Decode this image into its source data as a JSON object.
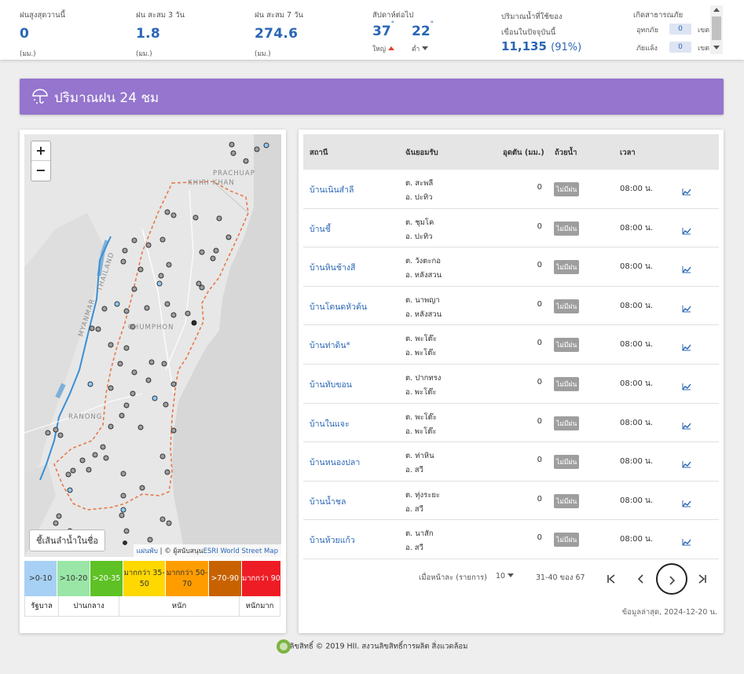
{
  "stats": [
    {
      "label": "ฝนสูงสุดวานนี้",
      "value": "0",
      "unit": "(มม.)"
    },
    {
      "label": "ฝน สะสม 3 วัน",
      "value": "1.8",
      "unit": "(มม.)"
    },
    {
      "label": "ฝน สะสม 7 วัน",
      "value": "274.6",
      "unit": "(มม.)"
    }
  ],
  "temperature": {
    "label": "สัปดาห์ต่อไป",
    "high": "37",
    "high_label": "ใหญ่",
    "low": "22",
    "low_label": "ต่ำ",
    "degree": "°"
  },
  "dam": {
    "label1": "ปริมาณน้ำที่ใช้ของ",
    "label2": "เขื่อนในปัจจุบันนี้",
    "value": "11,135",
    "percent": "(91%)"
  },
  "disaster": {
    "label": "เกิดสาธารณภัย",
    "flood_label": "อุทกภัย",
    "flood_count": "0",
    "drought_label": "ภัยแล้ง",
    "drought_count": "0",
    "unit": "เขต"
  },
  "banner": {
    "title": "ปริมาณฝน 24 ชม",
    "icon": "umbrella-rain-icon"
  },
  "map": {
    "zoom_in": "+",
    "zoom_out": "−",
    "labels": [
      "PRACHUAP",
      "KHIRI KHAN",
      "THAILAND",
      "MYANMAR",
      "CHUMPHON",
      "RANONG"
    ],
    "river_button": "ชี้เส้นลำน้ำในชื่อ",
    "attr_pre": "แผ่นพับ",
    "attr_mid": " | © ผู้สนับสนุน",
    "attr_link": "ESRI World Street Map"
  },
  "legend": {
    "cells": [
      {
        "label": ">0-10",
        "color": "#a7d0f5",
        "text": "#333"
      },
      {
        "label": ">10-20",
        "color": "#99e6a6",
        "text": "#333"
      },
      {
        "label": ">20-35",
        "color": "#5ec125",
        "text": "#fff"
      },
      {
        "label": "มากกว่า 35-50",
        "color": "#ffd800",
        "text": "#333"
      },
      {
        "label": "มากกว่า 50-70",
        "color": "#ff9d00",
        "text": "#333"
      },
      {
        "label": ">70-90",
        "color": "#c86200",
        "text": "#fff"
      },
      {
        "label": "มากกว่า 90",
        "color": "#ee1c25",
        "text": "#fff"
      }
    ],
    "categories": [
      "รัฐบาล",
      "ปานกลาง",
      "หนัก",
      "หนักมาก"
    ]
  },
  "table": {
    "headers": {
      "station": "สถานี",
      "location": "ฉันยอมรับ",
      "rain": "อุดตัน (มม.)",
      "pit": "ถ้วยน้ำ",
      "time": "เวลา"
    },
    "rows": [
      {
        "station": "บ้านเนินสำลี",
        "tambon": "ต. สะพลี",
        "amphoe": "อ. ปะทิว",
        "rain": "0",
        "status": "ไม่มีฝน",
        "time": "08:00 น."
      },
      {
        "station": "บ้านชี้",
        "tambon": "ต. ชุมโค",
        "amphoe": "อ. ปะทิว",
        "rain": "0",
        "status": "ไม่มีฝน",
        "time": "08:00 น."
      },
      {
        "station": "บ้านหินช้างสี",
        "tambon": "ต. วังตะกอ",
        "amphoe": "อ. หลังสวน",
        "rain": "0",
        "status": "ไม่มีฝน",
        "time": "08:00 น."
      },
      {
        "station": "บ้านโตนดหัวต้น",
        "tambon": "ต. นาพญา",
        "amphoe": "อ. หลังสวน",
        "rain": "0",
        "status": "ไม่มีฝน",
        "time": "08:00 น."
      },
      {
        "station": "บ้านท่าดิน*",
        "tambon": "ต. พะโต๊ะ",
        "amphoe": "อ. พะโต๊ะ",
        "rain": "0",
        "status": "ไม่มีฝน",
        "time": "08:00 น."
      },
      {
        "station": "บ้านทับขอน",
        "tambon": "ต. ปากทรง",
        "amphoe": "อ. พะโต๊ะ",
        "rain": "0",
        "status": "ไม่มีฝน",
        "time": "08:00 น."
      },
      {
        "station": "บ้านในแจะ",
        "tambon": "ต. พะโต๊ะ",
        "amphoe": "อ. พะโต๊ะ",
        "rain": "0",
        "status": "ไม่มีฝน",
        "time": "08:00 น."
      },
      {
        "station": "บ้านหนองปลา",
        "tambon": "ต. ท่าหิน",
        "amphoe": "อ. สวี",
        "rain": "0",
        "status": "ไม่มีฝน",
        "time": "08:00 น."
      },
      {
        "station": "บ้านน้ำชล",
        "tambon": "ต. ทุ่งระยะ",
        "amphoe": "อ. สวี",
        "rain": "0",
        "status": "ไม่มีฝน",
        "time": "08:00 น."
      },
      {
        "station": "บ้านห้วยแก้ว",
        "tambon": "ต. นาสัก",
        "amphoe": "อ. สวี",
        "rain": "0",
        "status": "ไม่มีฝน",
        "time": "08:00 น."
      }
    ]
  },
  "pagination": {
    "per_page_label": "เมื่อหน้าละ (รายการ)",
    "per_page": "10",
    "range": "31-40 ของ 67",
    "first": "|<",
    "prev": "<",
    "next": ">",
    "last": ">|"
  },
  "updated": "ข้อมูลล่าสุด, 2024-12-20 น.",
  "footer": "ลิขสิทธิ์ © 2019 HII. สงวนลิขสิทธิ์การผลิต สิ่งแวดล้อม",
  "colors": {
    "accent": "#2a66b5",
    "banner": "#9575cd",
    "station_dot": "#9e9e9e",
    "station_dot_blue": "#90caf9",
    "boundary": "#e6794a"
  }
}
